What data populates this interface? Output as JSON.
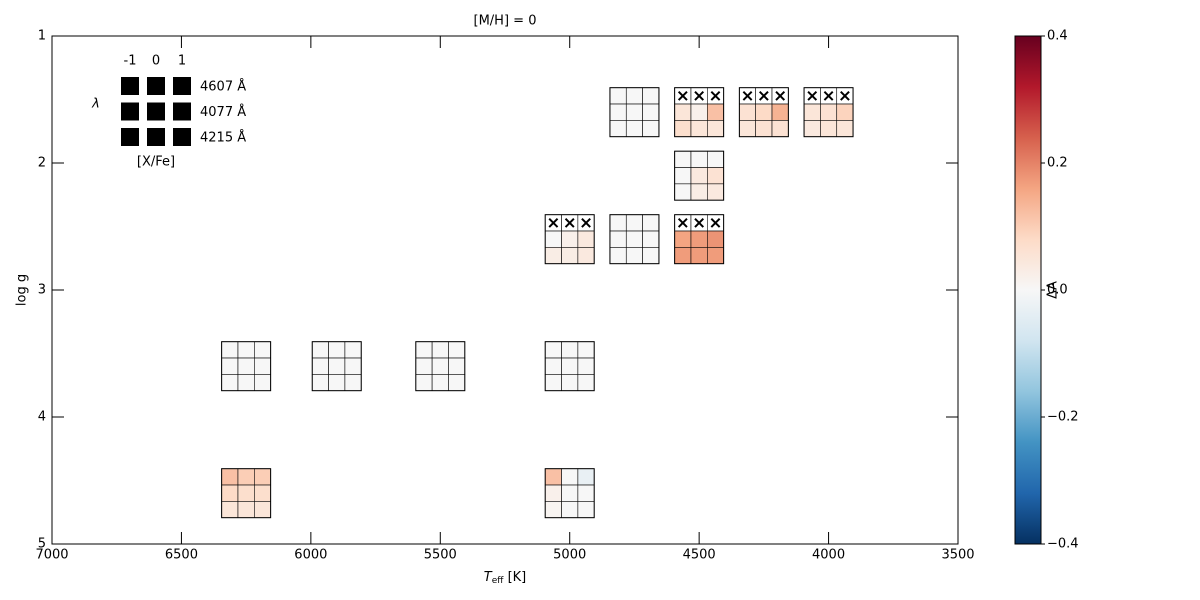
{
  "chart_data": {
    "type": "glyph-heatmap",
    "title": "[M/H] = 0",
    "xlabel": {
      "main": "T",
      "sub": "eff",
      "rest": " [K]"
    },
    "ylabel": "log g",
    "xlim": [
      7000,
      3500
    ],
    "xticks": [
      7000,
      6500,
      6000,
      5500,
      5000,
      4500,
      4000,
      3500
    ],
    "ylim": [
      5,
      1
    ],
    "yticks": [
      1,
      2,
      3,
      4,
      5
    ],
    "colormap": "RdBu_r",
    "clim": [
      -0.4,
      0.4
    ],
    "colorbar_label": "ΔA",
    "cticks": [
      {
        "value": -0.4,
        "label": "−0.4"
      },
      {
        "value": -0.2,
        "label": "−0.2"
      },
      {
        "value": 0,
        "label": "0.0"
      },
      0.2,
      0.4
    ],
    "legend": {
      "lambda_label": "λ",
      "xfe_label": "[X/Fe]",
      "xfe_values": [
        -1,
        0,
        1
      ],
      "wavelengths": [
        "4607 Å",
        "4077 Å",
        "4215 Å"
      ]
    },
    "glyphs": [
      {
        "teff": 4750,
        "logg": 1.6,
        "values": [
          [
            0,
            0,
            0
          ],
          [
            0,
            0,
            0
          ],
          [
            0,
            0,
            0
          ]
        ]
      },
      {
        "teff": 4500,
        "logg": 1.6,
        "values": [
          [
            null,
            null,
            null
          ],
          [
            0.05,
            0.02,
            0.12
          ],
          [
            0.07,
            0.05,
            0.05
          ]
        ]
      },
      {
        "teff": 4250,
        "logg": 1.6,
        "values": [
          [
            null,
            null,
            null
          ],
          [
            0.06,
            0.08,
            0.14
          ],
          [
            0.05,
            0.06,
            0.06
          ]
        ]
      },
      {
        "teff": 4000,
        "logg": 1.6,
        "values": [
          [
            null,
            null,
            null
          ],
          [
            0.05,
            0.06,
            0.09
          ],
          [
            0.04,
            0.05,
            0.05
          ]
        ]
      },
      {
        "teff": 4500,
        "logg": 2.1,
        "values": [
          [
            0,
            0,
            0
          ],
          [
            0,
            0.04,
            0.06
          ],
          [
            0,
            0.03,
            0.04
          ]
        ]
      },
      {
        "teff": 5000,
        "logg": 2.6,
        "values": [
          [
            null,
            null,
            null
          ],
          [
            0,
            0.02,
            0.04
          ],
          [
            0.03,
            0.03,
            0.04
          ]
        ]
      },
      {
        "teff": 4750,
        "logg": 2.6,
        "values": [
          [
            0,
            0,
            0
          ],
          [
            0,
            0,
            0
          ],
          [
            0,
            0,
            0
          ]
        ]
      },
      {
        "teff": 4500,
        "logg": 2.6,
        "values": [
          [
            null,
            null,
            null
          ],
          [
            0.16,
            0.17,
            0.18
          ],
          [
            0.17,
            0.17,
            0.17
          ]
        ]
      },
      {
        "teff": 6250,
        "logg": 3.6,
        "values": [
          [
            0,
            0,
            0
          ],
          [
            0,
            0,
            0
          ],
          [
            0,
            0,
            0
          ]
        ]
      },
      {
        "teff": 5900,
        "logg": 3.6,
        "values": [
          [
            0,
            0,
            0
          ],
          [
            0,
            0,
            0
          ],
          [
            0,
            0,
            0
          ]
        ]
      },
      {
        "teff": 5500,
        "logg": 3.6,
        "values": [
          [
            0,
            0,
            0
          ],
          [
            0,
            0,
            0
          ],
          [
            0,
            0,
            0
          ]
        ]
      },
      {
        "teff": 5000,
        "logg": 3.6,
        "values": [
          [
            0,
            0,
            0
          ],
          [
            0,
            0,
            0
          ],
          [
            0,
            0,
            0
          ]
        ]
      },
      {
        "teff": 6250,
        "logg": 4.6,
        "values": [
          [
            0.12,
            0.1,
            0.1
          ],
          [
            0.08,
            0.07,
            0.07
          ],
          [
            0.05,
            0.05,
            0.05
          ]
        ]
      },
      {
        "teff": 5000,
        "logg": 4.6,
        "values": [
          [
            0.12,
            0,
            -0.03
          ],
          [
            0.02,
            0,
            0
          ],
          [
            0.01,
            0,
            0
          ]
        ]
      }
    ]
  }
}
